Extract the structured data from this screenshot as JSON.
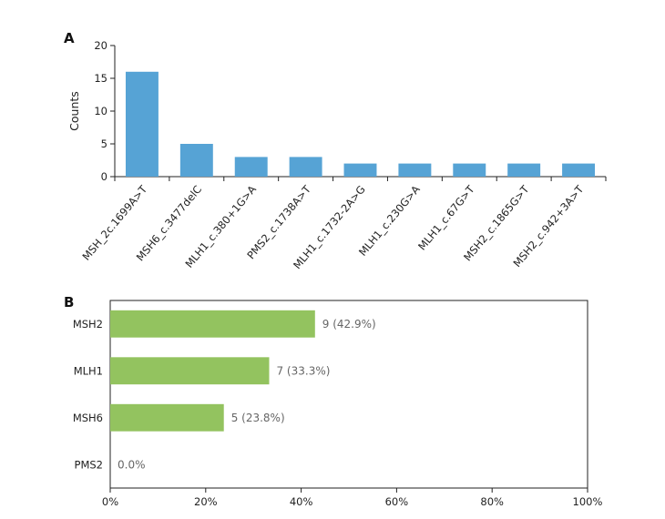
{
  "chart_data": [
    {
      "panel": "A",
      "type": "bar",
      "orientation": "vertical",
      "ylabel": "Counts",
      "xlabel": "",
      "ylim": [
        0,
        20
      ],
      "yticks": [
        0,
        5,
        10,
        15,
        20
      ],
      "categories": [
        "MSH_2c.1699A>T",
        "MSH6_c.3477delC",
        "MLH1_c.380+1G>A",
        "PMS2_c.1738A>T",
        "MLH1_c.1732-2A>G",
        "MLH1_c.230G>A",
        "MLH1_c.67G>T",
        "MSH2_c.1865G>T",
        "MSH2_c.942+3A>T"
      ],
      "values": [
        16,
        5,
        3,
        3,
        2,
        2,
        2,
        2,
        2
      ],
      "color": "#56a3d5",
      "grid": false
    },
    {
      "panel": "B",
      "type": "bar",
      "orientation": "horizontal",
      "xlim": [
        0,
        100
      ],
      "xticks": [
        "0%",
        "20%",
        "40%",
        "60%",
        "80%",
        "100%"
      ],
      "categories": [
        "MSH2",
        "MLH1",
        "MSH6",
        "PMS2"
      ],
      "values": [
        42.9,
        33.3,
        23.8,
        0.0
      ],
      "data_labels": [
        "9 (42.9%)",
        "7 (33.3%)",
        "5 (23.8%)",
        "0.0%"
      ],
      "color": "#93c35f",
      "grid": false
    }
  ]
}
